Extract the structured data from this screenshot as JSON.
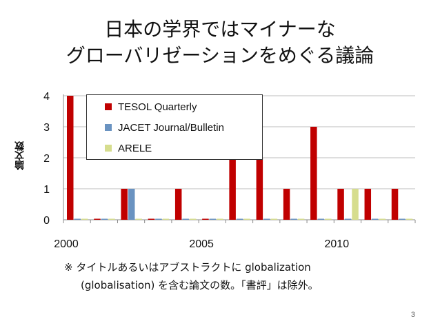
{
  "slide": {
    "title_lines": [
      "日本の学界ではマイナーな",
      "グローバリゼーションをめぐる議論"
    ],
    "y_axis_label": "論文数",
    "note_lines": [
      "※ タイトルあるいはアブストラクトに globalization",
      "(globalisation) を含む論文の数。「書評」は除外。"
    ],
    "page_number": "3"
  },
  "chart_data": {
    "type": "bar",
    "x": [
      2000,
      2001,
      2002,
      2003,
      2004,
      2005,
      2006,
      2007,
      2008,
      2009,
      2010,
      2011,
      2012
    ],
    "x_tick_labels": [
      "2000",
      "2005",
      "2010"
    ],
    "ylabel": "論文数",
    "ylim": [
      0,
      4
    ],
    "y_tick_labels": [
      "0",
      "1",
      "2",
      "3",
      "4"
    ],
    "legend_placement": "top-left",
    "grid": true,
    "series": [
      {
        "name": "TESOL Quarterly",
        "color": "#C00000",
        "values": [
          4,
          0,
          1,
          0,
          1,
          0,
          2,
          2,
          1,
          3,
          1,
          1,
          1
        ]
      },
      {
        "name": "JACET Journal/Bulletin",
        "color": "#6A93C1",
        "values": [
          0,
          0,
          1,
          0,
          0,
          0,
          0,
          0,
          0,
          0,
          0,
          0,
          0
        ]
      },
      {
        "name": "ARELE",
        "color": "#D6DD8E",
        "values": [
          0,
          0,
          0,
          0,
          0,
          0,
          0,
          0,
          0,
          0,
          1,
          0,
          0
        ]
      }
    ]
  }
}
